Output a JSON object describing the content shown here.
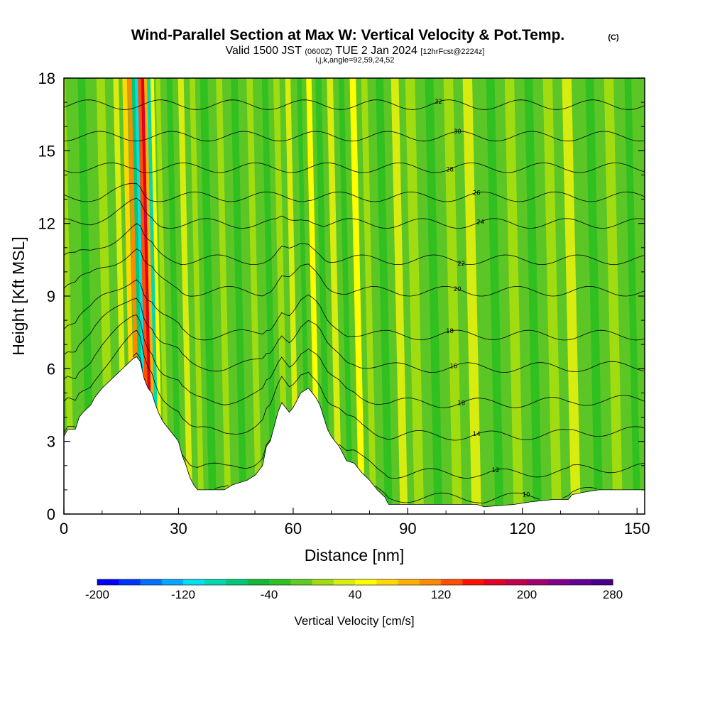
{
  "chart_data": {
    "type": "heatmap",
    "title": "Wind-Parallel Section at Max W: Vertical Velocity & Pot.Temp.",
    "copyright_mark": "(C)",
    "subtitle": {
      "valid": "Valid 1500 JST",
      "utc": "(0600Z)",
      "date": "TUE 2 Jan 2024",
      "forecast": "[12hrFcst@2224z]"
    },
    "grid_info": "i,j,k,angle=92,59,24,52",
    "xlabel": "Distance [nm]",
    "ylabel": "Height [Kft MSL]",
    "xlim": [
      0,
      152
    ],
    "ylim": [
      0,
      18
    ],
    "x_ticks": [
      "0",
      "30",
      "60",
      "90",
      "120",
      "150"
    ],
    "y_ticks": [
      "0",
      "3",
      "6",
      "9",
      "12",
      "15",
      "18"
    ],
    "colorbar": {
      "label": "Vertical Velocity [cm/s]",
      "ticks": [
        "-200",
        "-120",
        "-40",
        "40",
        "120",
        "200",
        "280"
      ],
      "range": [
        -200,
        280
      ],
      "step": 20,
      "colors": [
        "#0000ff",
        "#0033ff",
        "#0070ff",
        "#00a8ff",
        "#00e0f0",
        "#00d8b0",
        "#00c878",
        "#10b838",
        "#30c020",
        "#60cc20",
        "#a0dc10",
        "#d8ec10",
        "#ffff00",
        "#ffd800",
        "#ffb000",
        "#ff8800",
        "#ff5000",
        "#ff1000",
        "#e00028",
        "#c0004c",
        "#a00070",
        "#80008c",
        "#600094",
        "#48008c"
      ]
    },
    "terrain_kft": [
      [
        0,
        3.2
      ],
      [
        1,
        3.5
      ],
      [
        3,
        3.5
      ],
      [
        4,
        4
      ],
      [
        5,
        4.2
      ],
      [
        7,
        4.5
      ],
      [
        8,
        4.8
      ],
      [
        10,
        5.2
      ],
      [
        12,
        5.5
      ],
      [
        14,
        5.8
      ],
      [
        16,
        6.1
      ],
      [
        18,
        6.4
      ],
      [
        19,
        6.5
      ],
      [
        20,
        6.3
      ],
      [
        21,
        5.6
      ],
      [
        22,
        5.2
      ],
      [
        23,
        5.0
      ],
      [
        24,
        4.5
      ],
      [
        25,
        4.1
      ],
      [
        26,
        3.8
      ],
      [
        27,
        3.6
      ],
      [
        28,
        3.4
      ],
      [
        30,
        3.0
      ],
      [
        31,
        2.4
      ],
      [
        32,
        2.0
      ],
      [
        33,
        1.5
      ],
      [
        34,
        1.2
      ],
      [
        35,
        1.0
      ],
      [
        40,
        1.0
      ],
      [
        42,
        1.0
      ],
      [
        44,
        1.2
      ],
      [
        46,
        1.3
      ],
      [
        48,
        1.4
      ],
      [
        50,
        1.6
      ],
      [
        52,
        2.0
      ],
      [
        53,
        2.8
      ],
      [
        54,
        3.0
      ],
      [
        55,
        3.6
      ],
      [
        56,
        4.2
      ],
      [
        57,
        4.6
      ],
      [
        58,
        4.4
      ],
      [
        59,
        4.2
      ],
      [
        60,
        4.4
      ],
      [
        62,
        5.0
      ],
      [
        64,
        5.2
      ],
      [
        66,
        4.8
      ],
      [
        67,
        4.5
      ],
      [
        68,
        4.0
      ],
      [
        69,
        3.5
      ],
      [
        70,
        3.2
      ],
      [
        71,
        3.0
      ],
      [
        72,
        2.8
      ],
      [
        73,
        2.5
      ],
      [
        74,
        2.2
      ],
      [
        76,
        2.1
      ],
      [
        78,
        1.7
      ],
      [
        80,
        1.4
      ],
      [
        82,
        1.0
      ],
      [
        84,
        0.7
      ],
      [
        85,
        0.4
      ],
      [
        90,
        0.4
      ],
      [
        100,
        0.4
      ],
      [
        108,
        0.4
      ],
      [
        110,
        0.3
      ],
      [
        118,
        0.4
      ],
      [
        122,
        0.5
      ],
      [
        128,
        0.6
      ],
      [
        132,
        0.6
      ],
      [
        133,
        0.8
      ],
      [
        136,
        0.9
      ],
      [
        140,
        1.0
      ],
      [
        152,
        1.0
      ]
    ],
    "isentropes": [
      {
        "label": "10",
        "base": 1.5
      },
      {
        "label": "12",
        "base": 2.4
      },
      {
        "label": "14",
        "base": 3.8
      },
      {
        "label": "16",
        "base": 5.0
      },
      {
        "label": "16",
        "base": 6.3
      },
      {
        "label": "18",
        "base": 7.5
      },
      {
        "label": "20",
        "base": 9.2
      },
      {
        "label": "22",
        "base": 10.5
      },
      {
        "label": "24",
        "base": 12.0
      },
      {
        "label": "26",
        "base": 13.1
      },
      {
        "label": "28",
        "base": 14.3
      },
      {
        "label": "30",
        "base": 15.6
      },
      {
        "label": "32",
        "base": 16.9
      }
    ]
  }
}
